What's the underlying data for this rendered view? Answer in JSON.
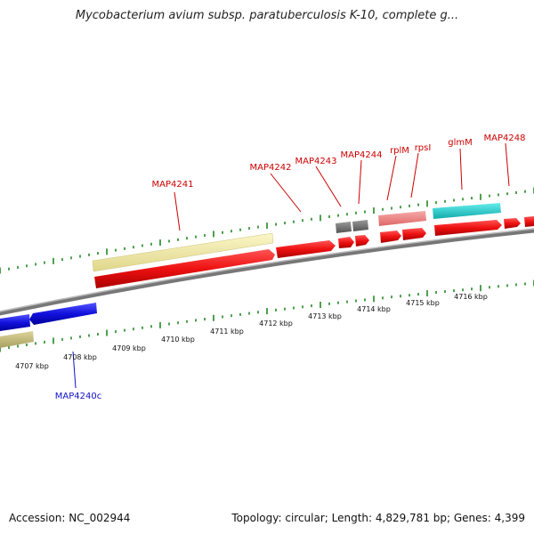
{
  "header": {
    "title": "Mycobacterium avium subsp. paratuberculosis K-10, complete g..."
  },
  "footer": {
    "accession": "Accession: NC_002944",
    "summary": "Topology: circular; Length: 4,829,781 bp; Genes: 4,399"
  },
  "map": {
    "ticks": [
      {
        "label": "4707 kbp",
        "kbp": 4707
      },
      {
        "label": "4708 kbp",
        "kbp": 4708
      },
      {
        "label": "4709 kbp",
        "kbp": 4709
      },
      {
        "label": "4710 kbp",
        "kbp": 4710
      },
      {
        "label": "4711 kbp",
        "kbp": 4711
      },
      {
        "label": "4712 kbp",
        "kbp": 4712
      },
      {
        "label": "4713 kbp",
        "kbp": 4713
      },
      {
        "label": "4714 kbp",
        "kbp": 4714
      },
      {
        "label": "4715 kbp",
        "kbp": 4715
      },
      {
        "label": "4716 kbp",
        "kbp": 4716
      }
    ],
    "gene_labels": [
      {
        "name": "MAP4241",
        "color": "#cc0000"
      },
      {
        "name": "MAP4242",
        "color": "#cc0000"
      },
      {
        "name": "MAP4243",
        "color": "#cc0000"
      },
      {
        "name": "MAP4244",
        "color": "#cc0000"
      },
      {
        "name": "rplM",
        "color": "#cc0000"
      },
      {
        "name": "rpsI",
        "color": "#cc0000"
      },
      {
        "name": "glmM",
        "color": "#cc0000"
      },
      {
        "name": "MAP4248",
        "color": "#cc0000"
      },
      {
        "name": "MAP4240c",
        "color": "#1010cc"
      }
    ],
    "feature_colors": {
      "cds_forward": "#ee1111",
      "cds_reverse": "#1111dd",
      "rrna_khaki": "#f0e8a0",
      "olive": "#c8c080",
      "grey": "#707070",
      "pink": "#ee8888",
      "teal": "#22cccc",
      "backbone": "#888888",
      "tick": "#228822"
    }
  }
}
